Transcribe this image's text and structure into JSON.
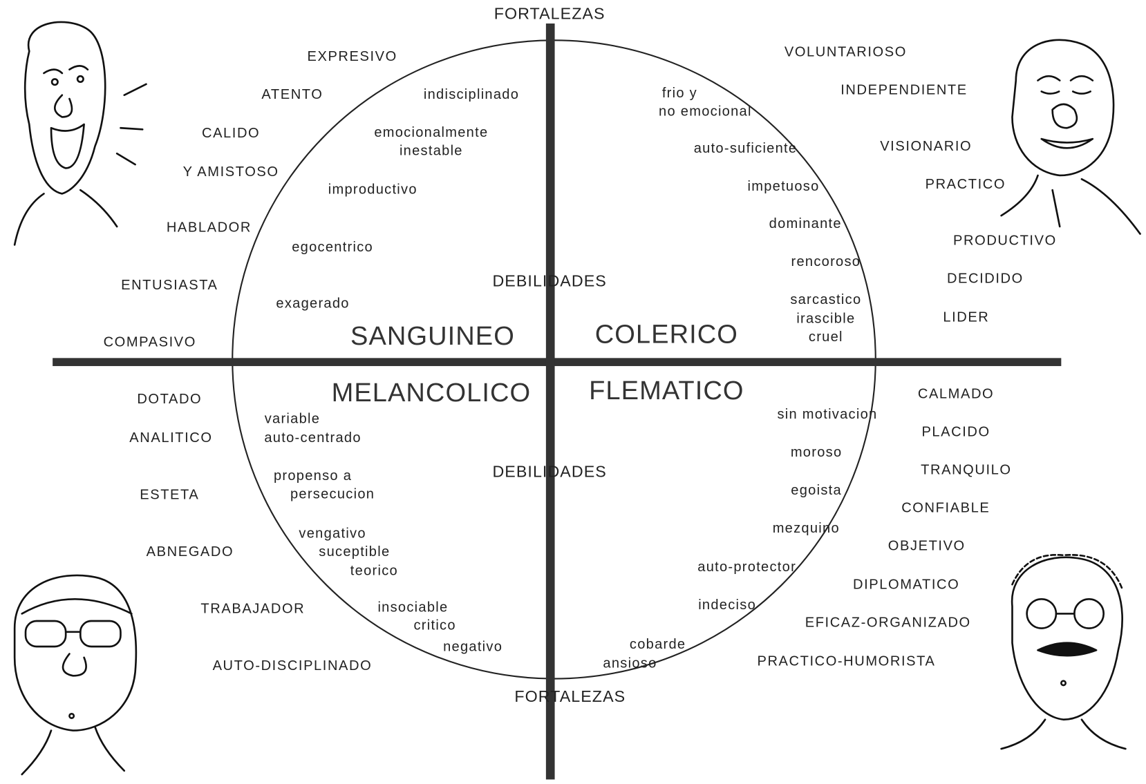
{
  "top_label": "FORTALEZAS",
  "bottom_label": "FORTALEZAS",
  "weakness_label_top": "DEBILIDADES",
  "weakness_label_bottom": "DEBILIDADES",
  "quadrants": [
    {
      "name": "SANGUINEO",
      "strengths": [
        "EXPRESIVO",
        "ATENTO",
        "CALIDO",
        "Y AMISTOSO",
        "HABLADOR",
        "ENTUSIASTA",
        "COMPASIVO"
      ],
      "weaknesses": [
        "indisciplinado",
        "emocionalmente",
        "inestable",
        "improductivo",
        "egocentrico",
        "exagerado"
      ]
    },
    {
      "name": "COLERICO",
      "strengths": [
        "VOLUNTARIOSO",
        "INDEPENDIENTE",
        "VISIONARIO",
        "PRACTICO",
        "PRODUCTIVO",
        "DECIDIDO",
        "LIDER"
      ],
      "weaknesses": [
        "frio y",
        "no emocional",
        "auto-suficiente",
        "impetuoso",
        "dominante",
        "rencoroso",
        "sarcastico",
        "irascible",
        "cruel"
      ]
    },
    {
      "name": "MELANCOLICO",
      "strengths": [
        "DOTADO",
        "ANALITICO",
        "ESTETA",
        "ABNEGADO",
        "TRABAJADOR",
        "AUTO-DISCIPLINADO"
      ],
      "weaknesses": [
        "variable",
        "auto-centrado",
        "propenso a",
        "persecucion",
        "vengativo",
        "suceptible",
        "teorico",
        "insociable",
        "critico",
        "negativo"
      ]
    },
    {
      "name": "FLEMATICO",
      "strengths": [
        "CALMADO",
        "PLACIDO",
        "TRANQUILO",
        "CONFIABLE",
        "OBJETIVO",
        "DIPLOMATICO",
        "EFICAZ-ORGANIZADO",
        "PRACTICO-HUMORISTA"
      ],
      "weaknesses": [
        "sin motivacion",
        "moroso",
        "egoista",
        "mezquino",
        "auto-protector",
        "indeciso",
        "cobarde",
        "ansioso"
      ]
    }
  ]
}
